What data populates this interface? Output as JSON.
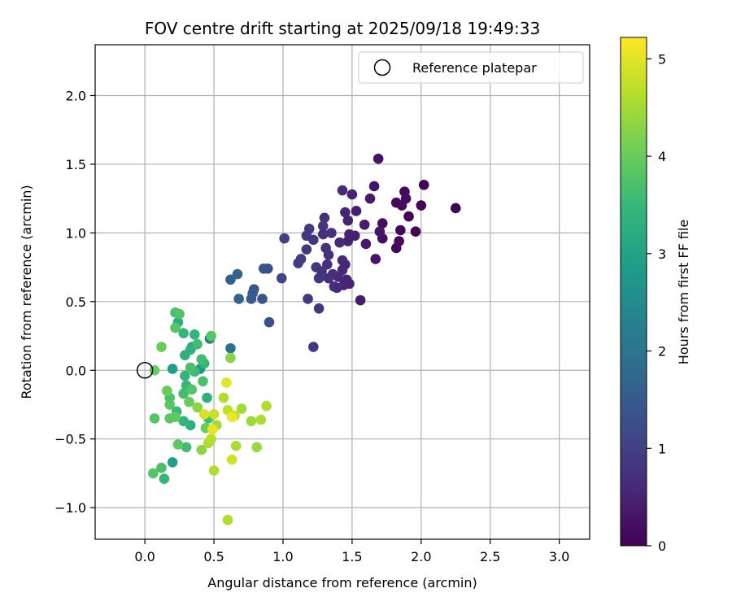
{
  "chart_data": {
    "type": "scatter",
    "title": "FOV centre drift starting at 2025/09/18 19:49:33",
    "xlabel": "Angular distance from reference (arcmin)",
    "ylabel": "Rotation from reference (arcmin)",
    "xlim": [
      -0.36,
      3.22
    ],
    "ylim": [
      -1.23,
      2.37
    ],
    "xticks": [
      0.0,
      0.5,
      1.0,
      1.5,
      2.0,
      2.5,
      3.0
    ],
    "xtick_labels": [
      "0.0",
      "0.5",
      "1.0",
      "1.5",
      "2.0",
      "2.5",
      "3.0"
    ],
    "yticks": [
      -1.0,
      -0.5,
      0.0,
      0.5,
      1.0,
      1.5,
      2.0
    ],
    "ytick_labels": [
      "−1.0",
      "−0.5",
      "0.0",
      "0.5",
      "1.0",
      "1.5",
      "2.0"
    ],
    "grid": true,
    "legend": {
      "position": "top-right",
      "entries": [
        "Reference platepar"
      ]
    },
    "reference_point": {
      "x": 0.0,
      "y": 0.0
    },
    "colorbar": {
      "label": "Hours from first FF file",
      "min": 0,
      "max": 5.22,
      "ticks": [
        0,
        1,
        2,
        3,
        4,
        5
      ],
      "tick_labels": [
        "0",
        "1",
        "2",
        "3",
        "4",
        "5"
      ],
      "colormap": "viridis",
      "colormap_stops": [
        "#440154",
        "#482878",
        "#3e4989",
        "#31688e",
        "#26828e",
        "#1f9e89",
        "#35b779",
        "#6ece58",
        "#b5de2b",
        "#fde725"
      ]
    },
    "series": [
      {
        "name": "FOV centre drift",
        "points": [
          [
            1.69,
            1.54,
            0.25
          ],
          [
            2.02,
            1.35,
            0.05
          ],
          [
            1.66,
            1.34,
            0.3
          ],
          [
            1.88,
            1.3,
            0.12
          ],
          [
            1.5,
            1.28,
            0.5
          ],
          [
            1.43,
            1.31,
            0.6
          ],
          [
            1.63,
            1.25,
            0.35
          ],
          [
            1.82,
            1.22,
            0.1
          ],
          [
            1.86,
            1.2,
            0.15
          ],
          [
            1.89,
            1.25,
            0.18
          ],
          [
            2.0,
            1.2,
            0.08
          ],
          [
            2.25,
            1.18,
            0.02
          ],
          [
            1.53,
            1.16,
            0.45
          ],
          [
            1.45,
            1.15,
            0.55
          ],
          [
            1.3,
            1.11,
            0.75
          ],
          [
            1.72,
            1.07,
            0.2
          ],
          [
            1.91,
            1.12,
            0.06
          ],
          [
            1.47,
            1.09,
            0.5
          ],
          [
            1.59,
            1.06,
            0.4
          ],
          [
            1.29,
            1.05,
            0.8
          ],
          [
            1.19,
            1.03,
            0.85
          ],
          [
            1.96,
            1.01,
            0.04
          ],
          [
            1.85,
            1.02,
            0.12
          ],
          [
            1.7,
            1.01,
            0.3
          ],
          [
            1.35,
            1.0,
            0.7
          ],
          [
            1.29,
            0.99,
            0.75
          ],
          [
            1.48,
            0.99,
            0.5
          ],
          [
            1.52,
            0.98,
            0.45
          ],
          [
            1.17,
            0.98,
            0.9
          ],
          [
            1.01,
            0.96,
            1.0
          ],
          [
            1.22,
            0.95,
            0.85
          ],
          [
            1.47,
            0.94,
            0.5
          ],
          [
            1.41,
            0.93,
            0.6
          ],
          [
            1.84,
            0.94,
            0.1
          ],
          [
            1.6,
            0.92,
            0.35
          ],
          [
            1.72,
            0.96,
            0.2
          ],
          [
            1.82,
            0.89,
            0.12
          ],
          [
            1.17,
            0.88,
            0.9
          ],
          [
            1.31,
            0.89,
            0.75
          ],
          [
            1.33,
            0.84,
            0.7
          ],
          [
            1.43,
            0.8,
            0.6
          ],
          [
            1.67,
            0.81,
            0.3
          ],
          [
            1.13,
            0.81,
            0.9
          ],
          [
            1.45,
            0.77,
            0.55
          ],
          [
            1.11,
            0.78,
            0.95
          ],
          [
            1.32,
            0.77,
            0.7
          ],
          [
            1.24,
            0.75,
            0.85
          ],
          [
            0.86,
            0.74,
            1.35
          ],
          [
            0.89,
            0.74,
            1.3
          ],
          [
            1.43,
            0.73,
            0.6
          ],
          [
            1.28,
            0.72,
            0.8
          ],
          [
            1.36,
            0.7,
            0.7
          ],
          [
            1.46,
            0.66,
            0.55
          ],
          [
            0.67,
            0.7,
            1.6
          ],
          [
            1.4,
            0.68,
            0.6
          ],
          [
            1.26,
            0.67,
            0.8
          ],
          [
            1.33,
            0.67,
            0.75
          ],
          [
            0.99,
            0.67,
            1.1
          ],
          [
            0.62,
            0.66,
            1.65
          ],
          [
            1.48,
            0.63,
            0.5
          ],
          [
            1.44,
            0.62,
            0.55
          ],
          [
            1.39,
            0.6,
            0.65
          ],
          [
            1.37,
            0.61,
            0.65
          ],
          [
            0.79,
            0.59,
            1.4
          ],
          [
            0.78,
            0.56,
            1.45
          ],
          [
            0.68,
            0.52,
            1.6
          ],
          [
            0.77,
            0.52,
            1.45
          ],
          [
            0.85,
            0.52,
            1.4
          ],
          [
            1.18,
            0.52,
            0.9
          ],
          [
            1.56,
            0.51,
            0.4
          ],
          [
            1.26,
            0.45,
            0.85
          ],
          [
            0.9,
            0.35,
            1.3
          ],
          [
            1.22,
            0.17,
            0.85
          ],
          [
            0.62,
            0.16,
            1.95
          ],
          [
            0.22,
            0.42,
            3.7
          ],
          [
            0.25,
            0.41,
            3.75
          ],
          [
            0.24,
            0.35,
            3.25
          ],
          [
            0.22,
            0.31,
            3.8
          ],
          [
            0.28,
            0.27,
            3.45
          ],
          [
            0.36,
            0.26,
            3.4
          ],
          [
            0.48,
            0.25,
            3.85
          ],
          [
            0.47,
            0.23,
            2.3
          ],
          [
            0.38,
            0.19,
            3.6
          ],
          [
            0.12,
            0.17,
            4.0
          ],
          [
            0.34,
            0.17,
            3.1
          ],
          [
            0.33,
            0.15,
            3.35
          ],
          [
            0.29,
            0.11,
            3.3
          ],
          [
            0.41,
            0.08,
            3.6
          ],
          [
            0.43,
            0.05,
            3.4
          ],
          [
            0.62,
            0.09,
            4.3
          ],
          [
            0.2,
            0.01,
            2.9
          ],
          [
            0.07,
            0.0,
            4.0
          ],
          [
            0.33,
            0.02,
            3.7
          ],
          [
            0.36,
            -0.01,
            3.55
          ],
          [
            0.4,
            0.01,
            2.8
          ],
          [
            0.29,
            -0.04,
            3.4
          ],
          [
            0.42,
            -0.08,
            3.7
          ],
          [
            0.59,
            -0.09,
            5.0
          ],
          [
            0.3,
            -0.11,
            3.5
          ],
          [
            0.34,
            -0.14,
            3.8
          ],
          [
            0.16,
            -0.15,
            4.0
          ],
          [
            0.28,
            -0.17,
            3.6
          ],
          [
            0.45,
            -0.2,
            3.3
          ],
          [
            0.18,
            -0.2,
            3.7
          ],
          [
            0.57,
            -0.2,
            4.6
          ],
          [
            0.32,
            -0.23,
            4.0
          ],
          [
            0.18,
            -0.25,
            3.85
          ],
          [
            0.38,
            -0.27,
            4.3
          ],
          [
            0.88,
            -0.26,
            4.6
          ],
          [
            0.7,
            -0.28,
            4.5
          ],
          [
            0.6,
            -0.29,
            4.7
          ],
          [
            0.23,
            -0.3,
            3.5
          ],
          [
            0.5,
            -0.32,
            4.8
          ],
          [
            0.65,
            -0.33,
            4.75
          ],
          [
            0.43,
            -0.32,
            4.9
          ],
          [
            0.07,
            -0.35,
            3.8
          ],
          [
            0.18,
            -0.35,
            3.85
          ],
          [
            0.22,
            -0.34,
            3.9
          ],
          [
            0.63,
            -0.34,
            5.1
          ],
          [
            0.84,
            -0.36,
            4.55
          ],
          [
            0.77,
            -0.37,
            4.45
          ],
          [
            0.28,
            -0.37,
            3.4
          ],
          [
            0.46,
            -0.35,
            3.6
          ],
          [
            0.33,
            -0.4,
            3.3
          ],
          [
            0.52,
            -0.4,
            4.5
          ],
          [
            0.49,
            -0.43,
            5.05
          ],
          [
            0.44,
            -0.42,
            4.0
          ],
          [
            0.48,
            -0.5,
            4.65
          ],
          [
            0.46,
            -0.53,
            4.55
          ],
          [
            0.24,
            -0.54,
            3.9
          ],
          [
            0.3,
            -0.56,
            3.6
          ],
          [
            0.66,
            -0.55,
            4.55
          ],
          [
            0.81,
            -0.56,
            4.4
          ],
          [
            0.41,
            -0.58,
            4.3
          ],
          [
            0.63,
            -0.65,
            4.85
          ],
          [
            0.2,
            -0.67,
            2.9
          ],
          [
            0.12,
            -0.71,
            3.7
          ],
          [
            0.5,
            -0.73,
            4.6
          ],
          [
            0.06,
            -0.75,
            3.8
          ],
          [
            0.14,
            -0.79,
            3.45
          ],
          [
            0.6,
            -1.09,
            4.6
          ]
        ]
      }
    ]
  }
}
